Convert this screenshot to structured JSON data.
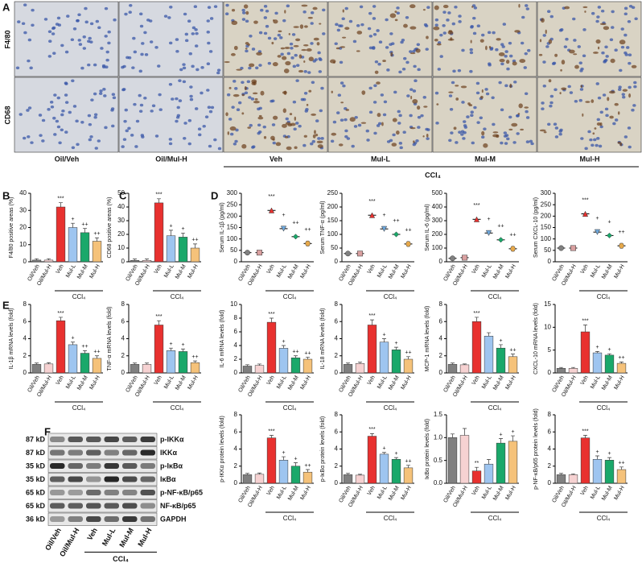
{
  "panel_labels": [
    "A",
    "B",
    "C",
    "D",
    "E",
    "F"
  ],
  "figure_a": {
    "rows": [
      "F4/80",
      "CD68"
    ],
    "columns": [
      "Oil/Veh",
      "Oil/Mul-H",
      "Veh",
      "Mul-L",
      "Mul-M",
      "Mul-H"
    ],
    "group_label": "CCl₄"
  },
  "western": {
    "kd": [
      "87 kD",
      "87 kD",
      "35 kD",
      "35 kD",
      "65 kD",
      "65 kD",
      "36 kD"
    ],
    "proteins": [
      "p-IKKα",
      "IKKα",
      "p-IκBα",
      "IκBα",
      "p-NF-κB/p65",
      "NF-κB/p65",
      "GAPDH"
    ],
    "lanes": [
      "Oil/Veh",
      "Oil/Mul-H",
      "Veh",
      "Mul-L",
      "Mul-M",
      "Mul-H"
    ],
    "group_label": "CCl₄"
  },
  "chart_data": [
    {
      "type": "bar",
      "y_label": "F4/80 positive areas (%)",
      "categories": [
        "Oil/Veh",
        "Oil/Mul-H",
        "Veh",
        "Mul-L",
        "Mul-M",
        "Mul-H"
      ],
      "values": [
        1,
        1,
        32,
        20,
        17,
        12
      ],
      "errors": [
        0.8,
        0.8,
        2.5,
        2.5,
        2.5,
        2
      ],
      "annotations": [
        null,
        null,
        "***",
        "+",
        "++",
        "++"
      ],
      "colors": [
        "#808080",
        "#f6d2d2",
        "#e8312f",
        "#9ec5f0",
        "#1aa86a",
        "#f5c27a"
      ],
      "ylim": [
        0,
        40
      ],
      "yticks": [
        0,
        10,
        20,
        30,
        40
      ],
      "group_label": "CCl₄"
    },
    {
      "type": "bar",
      "y_label": "CD68 positive areas (%)",
      "categories": [
        "Oil/Veh",
        "Oil/Mul-H",
        "Veh",
        "Mul-L",
        "Mul-M",
        "Mul-H"
      ],
      "values": [
        1,
        1,
        43,
        19,
        18,
        10
      ],
      "errors": [
        1,
        1,
        3,
        4,
        3,
        3
      ],
      "annotations": [
        null,
        null,
        "***",
        "+",
        "+",
        "++"
      ],
      "colors": [
        "#808080",
        "#f6d2d2",
        "#e8312f",
        "#9ec5f0",
        "#1aa86a",
        "#f5c27a"
      ],
      "ylim": [
        0,
        50
      ],
      "yticks": [
        0,
        10,
        20,
        30,
        40,
        50
      ],
      "group_label": "CCl₄"
    },
    {
      "type": "dot",
      "y_label": "Serum IL-1β (pg/ml)",
      "categories": [
        "Oil/Veh",
        "Oil/Mul-H",
        "Veh",
        "Mul-L",
        "Mul-M",
        "Mul-H"
      ],
      "values": [
        40,
        40,
        225,
        145,
        110,
        80
      ],
      "annotations": [
        null,
        null,
        "***",
        "+",
        "++",
        "++"
      ],
      "colors": [
        "#808080",
        "#d9a0a0",
        "#e8312f",
        "#6fa8dc",
        "#1aa86a",
        "#e6a84a"
      ],
      "ylim": [
        0,
        300
      ],
      "yticks": [
        0,
        50,
        100,
        150,
        200,
        250,
        300
      ],
      "group_label": "CCl₄"
    },
    {
      "type": "dot",
      "y_label": "Serum TNF-α (pg/ml)",
      "categories": [
        "Oil/Veh",
        "Oil/Mul-H",
        "Veh",
        "Mul-L",
        "Mul-M",
        "Mul-H"
      ],
      "values": [
        30,
        30,
        170,
        120,
        100,
        65
      ],
      "annotations": [
        null,
        null,
        "***",
        "+",
        "++",
        "++"
      ],
      "colors": [
        "#808080",
        "#d9a0a0",
        "#e8312f",
        "#6fa8dc",
        "#1aa86a",
        "#e6a84a"
      ],
      "ylim": [
        0,
        250
      ],
      "yticks": [
        0,
        50,
        100,
        150,
        200,
        250
      ],
      "group_label": "CCl₄"
    },
    {
      "type": "dot",
      "y_label": "Serum IL-6 (pg/ml)",
      "categories": [
        "Oil/Veh",
        "Oil/Mul-H",
        "Veh",
        "Mul-L",
        "Mul-M",
        "Mul-H"
      ],
      "values": [
        25,
        30,
        310,
        210,
        160,
        95
      ],
      "annotations": [
        null,
        null,
        "***",
        "+",
        "++",
        "++"
      ],
      "colors": [
        "#808080",
        "#d9a0a0",
        "#e8312f",
        "#6fa8dc",
        "#1aa86a",
        "#e6a84a"
      ],
      "ylim": [
        0,
        500
      ],
      "yticks": [
        0,
        100,
        200,
        300,
        400,
        500
      ],
      "group_label": "CCl₄"
    },
    {
      "type": "dot",
      "y_label": "Serum CXCL-10 (pg/ml)",
      "categories": [
        "Oil/Veh",
        "Oil/Mul-H",
        "Veh",
        "Mul-L",
        "Mul-M",
        "Mul-H"
      ],
      "values": [
        60,
        60,
        210,
        130,
        115,
        70
      ],
      "annotations": [
        null,
        null,
        "***",
        "+",
        "+",
        "++"
      ],
      "colors": [
        "#808080",
        "#d9a0a0",
        "#e8312f",
        "#6fa8dc",
        "#1aa86a",
        "#e6a84a"
      ],
      "ylim": [
        0,
        300
      ],
      "yticks": [
        0,
        50,
        100,
        150,
        200,
        250,
        300
      ],
      "group_label": "CCl₄"
    },
    {
      "type": "bar",
      "y_label": "IL-1β mRNA levels (fold)",
      "categories": [
        "Oil/Veh",
        "Oil/Mul-H",
        "Veh",
        "Mul-L",
        "Mul-M",
        "Mul-H"
      ],
      "values": [
        1,
        1.05,
        6.1,
        3.3,
        2.3,
        1.7
      ],
      "errors": [
        0.15,
        0.15,
        0.4,
        0.3,
        0.3,
        0.3
      ],
      "annotations": [
        null,
        null,
        "***",
        "+",
        "++",
        "++"
      ],
      "colors": [
        "#808080",
        "#f6d2d2",
        "#e8312f",
        "#9ec5f0",
        "#1aa86a",
        "#f5c27a"
      ],
      "ylim": [
        0,
        8
      ],
      "yticks": [
        0,
        2,
        4,
        6,
        8
      ],
      "group_label": "CCl₄"
    },
    {
      "type": "bar",
      "y_label": "TNF-α mRNA levels (fold)",
      "categories": [
        "Oil/Veh",
        "Oil/Mul-H",
        "Veh",
        "Mul-L",
        "Mul-M",
        "Mul-H"
      ],
      "values": [
        1,
        1,
        5.6,
        2.6,
        2.5,
        1.2
      ],
      "errors": [
        0.15,
        0.15,
        0.5,
        0.3,
        0.3,
        0.2
      ],
      "annotations": [
        null,
        null,
        "***",
        "+",
        "+",
        "++"
      ],
      "colors": [
        "#808080",
        "#f6d2d2",
        "#e8312f",
        "#9ec5f0",
        "#1aa86a",
        "#f5c27a"
      ],
      "ylim": [
        0,
        8
      ],
      "yticks": [
        0,
        2,
        4,
        6,
        8
      ],
      "group_label": "CCl₄"
    },
    {
      "type": "bar",
      "y_label": "IL-6 mRNA levels (fold)",
      "categories": [
        "Oil/Veh",
        "Oil/Mul-H",
        "Veh",
        "Mul-L",
        "Mul-M",
        "Mul-H"
      ],
      "values": [
        1,
        1.1,
        7.4,
        3.6,
        2.2,
        2
      ],
      "errors": [
        0.2,
        0.2,
        0.6,
        0.4,
        0.3,
        0.3
      ],
      "annotations": [
        null,
        null,
        "***",
        "+",
        "++",
        "++"
      ],
      "colors": [
        "#808080",
        "#f6d2d2",
        "#e8312f",
        "#9ec5f0",
        "#1aa86a",
        "#f5c27a"
      ],
      "ylim": [
        0,
        10
      ],
      "yticks": [
        0,
        2,
        4,
        6,
        8,
        10
      ],
      "group_label": "CCl₄"
    },
    {
      "type": "bar",
      "y_label": "IL-18 mRNA levels (fold)",
      "categories": [
        "Oil/Veh",
        "Oil/Mul-H",
        "Veh",
        "Mul-L",
        "Mul-M",
        "Mul-H"
      ],
      "values": [
        1,
        1.1,
        5.6,
        3.6,
        2.7,
        1.6
      ],
      "errors": [
        0.15,
        0.15,
        0.6,
        0.4,
        0.3,
        0.3
      ],
      "annotations": [
        null,
        null,
        "***",
        "+",
        "+",
        "++"
      ],
      "colors": [
        "#808080",
        "#f6d2d2",
        "#e8312f",
        "#9ec5f0",
        "#1aa86a",
        "#f5c27a"
      ],
      "ylim": [
        0,
        8
      ],
      "yticks": [
        0,
        2,
        4,
        6,
        8
      ],
      "group_label": "CCl₄"
    },
    {
      "type": "bar",
      "y_label": "MCP-1 mRNA levels (fold)",
      "categories": [
        "Oil/Veh",
        "Oil/Mul-H",
        "Veh",
        "Mul-L",
        "Mul-M",
        "Mul-H"
      ],
      "values": [
        1,
        0.95,
        6,
        4.3,
        2.9,
        1.9
      ],
      "errors": [
        0.15,
        0.1,
        0.5,
        0.4,
        0.4,
        0.3
      ],
      "annotations": [
        null,
        null,
        "***",
        null,
        "+",
        "++"
      ],
      "colors": [
        "#808080",
        "#f6d2d2",
        "#e8312f",
        "#9ec5f0",
        "#1aa86a",
        "#f5c27a"
      ],
      "ylim": [
        0,
        8
      ],
      "yticks": [
        0,
        2,
        4,
        6,
        8
      ],
      "group_label": "CCl₄"
    },
    {
      "type": "bar",
      "y_label": "CXCL-10 mRNA levels (fold)",
      "categories": [
        "Oil/Veh",
        "Oil/Mul-H",
        "Veh",
        "Mul-L",
        "Mul-M",
        "Mul-H"
      ],
      "values": [
        1,
        1,
        9,
        4.4,
        3.9,
        2.1
      ],
      "errors": [
        0.2,
        0.2,
        1.5,
        0.3,
        0.3,
        0.3
      ],
      "annotations": [
        null,
        null,
        "***",
        "+",
        "+",
        "++"
      ],
      "colors": [
        "#808080",
        "#f6d2d2",
        "#e8312f",
        "#9ec5f0",
        "#1aa86a",
        "#f5c27a"
      ],
      "ylim": [
        0,
        15
      ],
      "yticks": [
        0,
        5,
        10,
        15
      ],
      "group_label": "CCl₄"
    },
    {
      "type": "bar",
      "y_label": "p-IKKα protein levels (fold)",
      "categories": [
        "Oil/Veh",
        "Oil/Mul-H",
        "Veh",
        "Mul-L",
        "Mul-M",
        "Mul-H"
      ],
      "values": [
        1,
        1.05,
        5.3,
        2.7,
        2,
        1.3
      ],
      "errors": [
        0.15,
        0.15,
        0.3,
        0.4,
        0.4,
        0.3
      ],
      "annotations": [
        null,
        null,
        "***",
        "+",
        "+",
        "++"
      ],
      "colors": [
        "#808080",
        "#f6d2d2",
        "#e8312f",
        "#9ec5f0",
        "#1aa86a",
        "#f5c27a"
      ],
      "ylim": [
        0,
        8
      ],
      "yticks": [
        0,
        2,
        4,
        6,
        8
      ],
      "group_label": "CCl₄"
    },
    {
      "type": "bar",
      "y_label": "p-IκBα protein levels (fold)",
      "categories": [
        "Oil/Veh",
        "Oil/Mul-H",
        "Veh",
        "Mul-L",
        "Mul-M",
        "Mul-H"
      ],
      "values": [
        1,
        0.95,
        5.5,
        3.4,
        2.8,
        1.8
      ],
      "errors": [
        0.15,
        0.1,
        0.3,
        0.2,
        0.2,
        0.3
      ],
      "annotations": [
        null,
        null,
        "***",
        "+",
        "+",
        "++"
      ],
      "colors": [
        "#808080",
        "#f6d2d2",
        "#e8312f",
        "#9ec5f0",
        "#1aa86a",
        "#f5c27a"
      ],
      "ylim": [
        0,
        8
      ],
      "yticks": [
        0,
        2,
        4,
        6,
        8
      ],
      "group_label": "CCl₄"
    },
    {
      "type": "bar",
      "y_label": "IκBα protein levels (fold)",
      "categories": [
        "Oil/Veh",
        "Oil/Mul-H",
        "Veh",
        "Mul-L",
        "Mul-M",
        "Mul-H"
      ],
      "values": [
        1,
        1.05,
        0.27,
        0.42,
        0.88,
        0.92
      ],
      "errors": [
        0.08,
        0.15,
        0.08,
        0.1,
        0.1,
        0.12
      ],
      "annotations": [
        null,
        null,
        "**",
        null,
        "+",
        "+"
      ],
      "colors": [
        "#808080",
        "#f6d2d2",
        "#e8312f",
        "#9ec5f0",
        "#1aa86a",
        "#f5c27a"
      ],
      "ylim": [
        0,
        1.5
      ],
      "yticks": [
        {
          "value": 0,
          "label": "0.0"
        },
        {
          "value": 0.5,
          "label": "0.5"
        },
        {
          "value": 1,
          "label": "1.0"
        },
        {
          "value": 1.5,
          "label": "1.5"
        }
      ],
      "group_label": "CCl₄"
    },
    {
      "type": "bar",
      "y_label": "p-NF-κB/p65 protein levels (fold)",
      "categories": [
        "Oil/Veh",
        "Oil/Mul-H",
        "Veh",
        "Mul-L",
        "Mul-M",
        "Mul-H"
      ],
      "values": [
        1,
        1,
        5.3,
        2.8,
        2.7,
        1.6
      ],
      "errors": [
        0.15,
        0.1,
        0.3,
        0.4,
        0.3,
        0.3
      ],
      "annotations": [
        null,
        null,
        "***",
        "+",
        "+",
        "++"
      ],
      "colors": [
        "#808080",
        "#f6d2d2",
        "#e8312f",
        "#9ec5f0",
        "#1aa86a",
        "#f5c27a"
      ],
      "ylim": [
        0,
        8
      ],
      "yticks": [
        0,
        2,
        4,
        6,
        8
      ],
      "group_label": "CCl₄"
    }
  ]
}
